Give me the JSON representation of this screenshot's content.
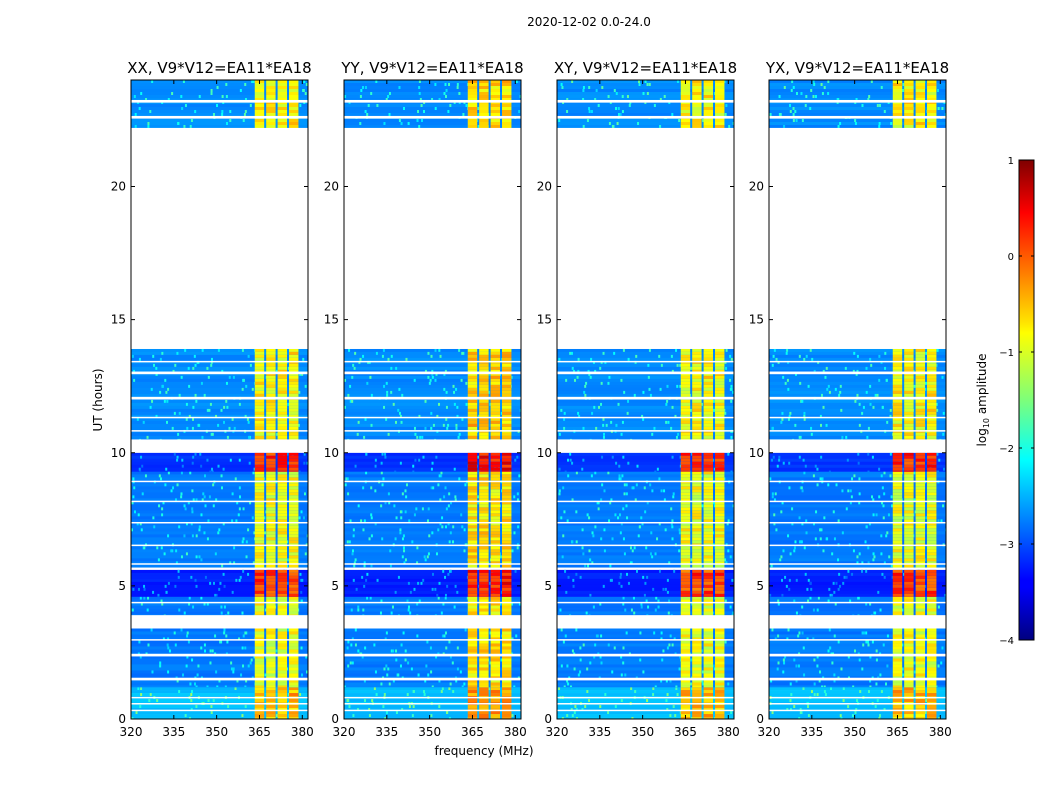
{
  "figure": {
    "suptitle": "2020-12-02 0.0-24.0",
    "ylabel": "UT (hours)",
    "xlabel": "frequency (MHz)"
  },
  "chart_data": {
    "type": "heatmap",
    "title": "2020-12-02 0.0-24.0",
    "xlabel": "frequency (MHz)",
    "ylabel": "UT (hours)",
    "xlim": [
      320,
      382
    ],
    "ylim": [
      0,
      24
    ],
    "xticks": [
      320,
      335,
      350,
      365,
      380
    ],
    "yticks": [
      0,
      5,
      10,
      15,
      20
    ],
    "panels": [
      {
        "id": "xx",
        "title": "XX, V9*V12=EA11*EA18"
      },
      {
        "id": "yy",
        "title": "YY, V9*V12=EA11*EA18"
      },
      {
        "id": "xy",
        "title": "XY, V9*V12=EA11*EA18"
      },
      {
        "id": "yx",
        "title": "YX, V9*V12=EA11*EA18"
      }
    ],
    "colorbar": {
      "label": "log10 amplitude",
      "label_main": "log",
      "label_sub": "10",
      "label_rest": " amplitude",
      "min": -4,
      "max": 1,
      "ticks": [
        1,
        0,
        -1,
        -2,
        -3,
        -4
      ],
      "tick_labels": [
        "1",
        "0",
        "−1",
        "−2",
        "−3",
        "−4"
      ]
    },
    "rfi_band_mhz": [
      363,
      379
    ],
    "data_blocks_hours": [
      {
        "start": 0.0,
        "end": 1.2,
        "level": 0.55
      },
      {
        "start": 1.2,
        "end": 3.4,
        "level": 0.35
      },
      {
        "start": 3.9,
        "end": 4.6,
        "level": 0.35
      },
      {
        "start": 4.6,
        "end": 5.6,
        "level": 0.1
      },
      {
        "start": 5.7,
        "end": 9.3,
        "level": 0.35
      },
      {
        "start": 9.3,
        "end": 10.0,
        "level": 0.15
      },
      {
        "start": 10.5,
        "end": 13.9,
        "level": 0.4
      },
      {
        "start": 22.2,
        "end": 24.0,
        "level": 0.4
      }
    ],
    "flagged_gaps_hours": [
      [
        0.3,
        0.35
      ],
      [
        0.55,
        0.6
      ],
      [
        0.78,
        0.83
      ],
      [
        1.45,
        1.55
      ],
      [
        2.35,
        2.45
      ],
      [
        2.95,
        3.0
      ],
      [
        3.4,
        3.9
      ],
      [
        4.35,
        4.4
      ],
      [
        5.8,
        5.85
      ],
      [
        6.5,
        6.55
      ],
      [
        7.35,
        7.4
      ],
      [
        8.15,
        8.2
      ],
      [
        8.9,
        8.95
      ],
      [
        10.0,
        10.5
      ],
      [
        10.8,
        10.85
      ],
      [
        11.3,
        11.35
      ],
      [
        12.0,
        12.1
      ],
      [
        12.95,
        13.05
      ],
      [
        13.4,
        13.45
      ],
      [
        13.9,
        22.2
      ],
      [
        22.55,
        22.65
      ],
      [
        23.15,
        23.25
      ]
    ]
  }
}
